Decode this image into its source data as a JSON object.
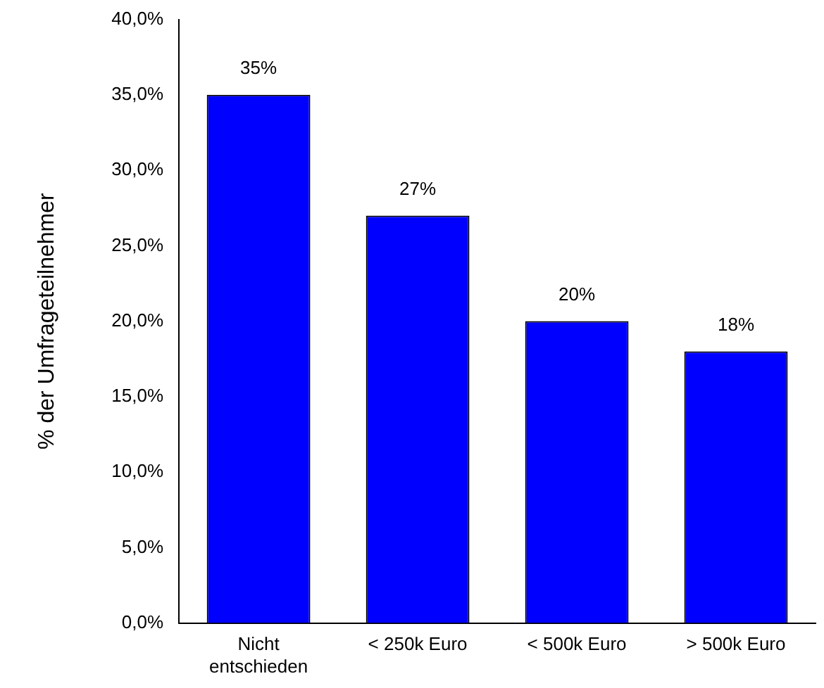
{
  "chart_data": {
    "type": "bar",
    "ylabel": "% der Umfrageteilnehmer",
    "categories": [
      "Nicht entschieden",
      "< 250k Euro",
      "< 500k Euro",
      "> 500k Euro"
    ],
    "values": [
      35,
      27,
      20,
      18
    ],
    "color": "#0000ff",
    "value_labels": [
      "35%",
      "27%",
      "20%",
      "18%"
    ],
    "ylim": [
      0,
      40
    ],
    "yticks": [
      {
        "value": 0,
        "label": "0,0%"
      },
      {
        "value": 5,
        "label": "5,0%"
      },
      {
        "value": 10,
        "label": "10,0%"
      },
      {
        "value": 15,
        "label": "15,0%"
      },
      {
        "value": 20,
        "label": "20,0%"
      },
      {
        "value": 25,
        "label": "25,0%"
      },
      {
        "value": 30,
        "label": "30,0%"
      },
      {
        "value": 35,
        "label": "35,0%"
      },
      {
        "value": 40,
        "label": "40,0%"
      }
    ],
    "grid": false,
    "legend": false
  }
}
